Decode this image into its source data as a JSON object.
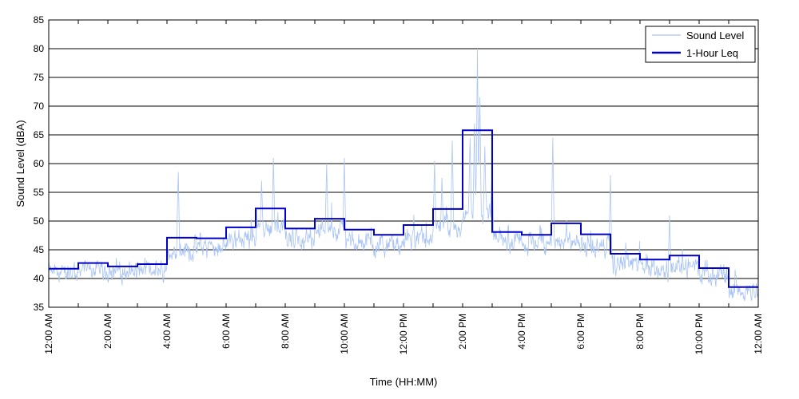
{
  "chart_data": {
    "type": "line",
    "title": "",
    "xlabel": "Time (HH:MM)",
    "ylabel": "Sound Level (dBA)",
    "xlim": [
      0,
      24
    ],
    "ylim": [
      35,
      85
    ],
    "y_ticks": [
      35,
      40,
      45,
      50,
      55,
      60,
      65,
      70,
      75,
      80,
      85
    ],
    "x_ticks": [
      0,
      2,
      4,
      6,
      8,
      10,
      12,
      14,
      16,
      18,
      20,
      22,
      24
    ],
    "x_tick_labels": [
      "12:00 AM",
      "2:00 AM",
      "4:00 AM",
      "6:00 AM",
      "8:00 AM",
      "10:00 AM",
      "12:00 PM",
      "2:00 PM",
      "4:00 PM",
      "6:00 PM",
      "8:00 PM",
      "10:00 PM",
      "12:00 AM"
    ],
    "grid": "horizontal",
    "legend_position": "top-right",
    "series": [
      {
        "name": "Sound Level",
        "color": "#a9c4f5",
        "hourly_base": [
          41.0,
          41.5,
          41.0,
          41.5,
          45.0,
          45.5,
          47.0,
          48.5,
          47.0,
          48.5,
          46.5,
          45.5,
          47.0,
          48.5,
          51.0,
          46.5,
          46.0,
          46.5,
          45.5,
          42.5,
          41.5,
          42.0,
          40.5,
          38.0
        ],
        "peaks": [
          {
            "x": 4.38,
            "y": 59.5
          },
          {
            "x": 7.2,
            "y": 57.0
          },
          {
            "x": 7.6,
            "y": 61.0
          },
          {
            "x": 9.4,
            "y": 60.0
          },
          {
            "x": 10.0,
            "y": 61.0
          },
          {
            "x": 13.05,
            "y": 60.5
          },
          {
            "x": 13.3,
            "y": 57.5
          },
          {
            "x": 13.65,
            "y": 64.0
          },
          {
            "x": 14.25,
            "y": 64.5
          },
          {
            "x": 14.4,
            "y": 67.0
          },
          {
            "x": 14.5,
            "y": 80.0
          },
          {
            "x": 14.58,
            "y": 73.0
          },
          {
            "x": 14.75,
            "y": 63.0
          },
          {
            "x": 15.0,
            "y": 60.5
          },
          {
            "x": 17.05,
            "y": 64.5
          },
          {
            "x": 19.0,
            "y": 58.0
          },
          {
            "x": 21.0,
            "y": 51.0
          }
        ]
      },
      {
        "name": "1-Hour Leq",
        "color": "#0000cc",
        "step_values": [
          41.7,
          42.7,
          42.1,
          42.5,
          47.1,
          47.0,
          48.9,
          52.2,
          48.7,
          50.4,
          48.5,
          47.6,
          49.3,
          52.1,
          65.8,
          48.1,
          47.6,
          49.6,
          47.7,
          44.3,
          43.3,
          44.0,
          41.8,
          38.5
        ]
      }
    ]
  }
}
